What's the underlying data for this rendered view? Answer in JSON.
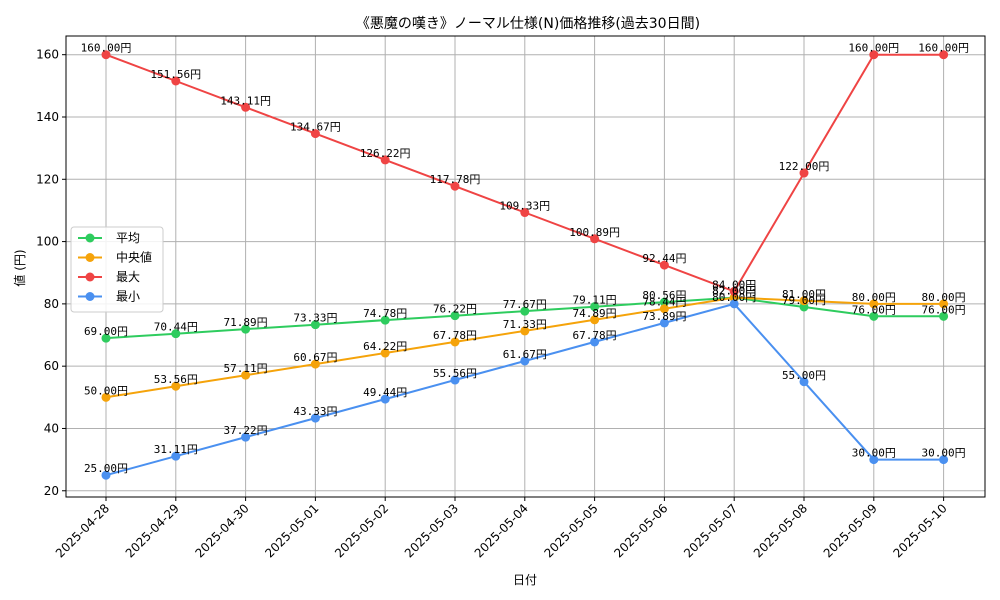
{
  "chart_data": {
    "type": "line",
    "title": "《悪魔の嘆き》ノーマル仕様(N)価格推移(過去30日間)",
    "xlabel": "日付",
    "ylabel": "値 (円)",
    "ylim": [
      18,
      166
    ],
    "yticks": [
      20,
      40,
      60,
      80,
      100,
      120,
      140,
      160
    ],
    "grid": true,
    "legend_position": "center-left",
    "categories": [
      "2025-04-28",
      "2025-04-29",
      "2025-04-30",
      "2025-05-01",
      "2025-05-02",
      "2025-05-03",
      "2025-05-04",
      "2025-05-05",
      "2025-05-06",
      "2025-05-07",
      "2025-05-08",
      "2025-05-09",
      "2025-05-10"
    ],
    "series": [
      {
        "name": "平均",
        "color": "#2ecc5e",
        "values": [
          69.0,
          70.44,
          71.89,
          73.33,
          74.78,
          76.22,
          77.67,
          79.11,
          80.56,
          82.0,
          79.0,
          76.0,
          76.0
        ],
        "labels": [
          "69.00円",
          "70.44円",
          "71.89円",
          "73.33円",
          "74.78円",
          "76.22円",
          "77.67円",
          "79.11円",
          "80.56円",
          "82.00円",
          "79.00円",
          "76.00円",
          "76.00円"
        ]
      },
      {
        "name": "中央値",
        "color": "#f5a30a",
        "values": [
          50.0,
          53.56,
          57.11,
          60.67,
          64.22,
          67.78,
          71.33,
          74.89,
          78.44,
          82.0,
          81.0,
          80.0,
          80.0
        ],
        "labels": [
          "50.00円",
          "53.56円",
          "57.11円",
          "60.67円",
          "64.22円",
          "67.78円",
          "71.33円",
          "74.89円",
          "78.44円",
          "82.00円",
          "81.00円",
          "80.00円",
          "80.00円"
        ]
      },
      {
        "name": "最大",
        "color": "#ef4444",
        "values": [
          160.0,
          151.56,
          143.11,
          134.67,
          126.22,
          117.78,
          109.33,
          100.89,
          92.44,
          84.0,
          122.0,
          160.0,
          160.0
        ],
        "labels": [
          "160.00円",
          "151.56円",
          "143.11円",
          "134.67円",
          "126.22円",
          "117.78円",
          "109.33円",
          "100.89円",
          "92.44円",
          "84.00円",
          "122.00円",
          "160.00円",
          "160.00円"
        ]
      },
      {
        "name": "最小",
        "color": "#4a90f0",
        "values": [
          25.0,
          31.11,
          37.22,
          43.33,
          49.44,
          55.56,
          61.67,
          67.78,
          73.89,
          80.0,
          55.0,
          30.0,
          30.0
        ],
        "labels": [
          "25.00円",
          "31.11円",
          "37.22円",
          "43.33円",
          "49.44円",
          "55.56円",
          "61.67円",
          "67.78円",
          "73.89円",
          "80.00円",
          "55.00円",
          "30.00円",
          "30.00円"
        ]
      }
    ]
  }
}
